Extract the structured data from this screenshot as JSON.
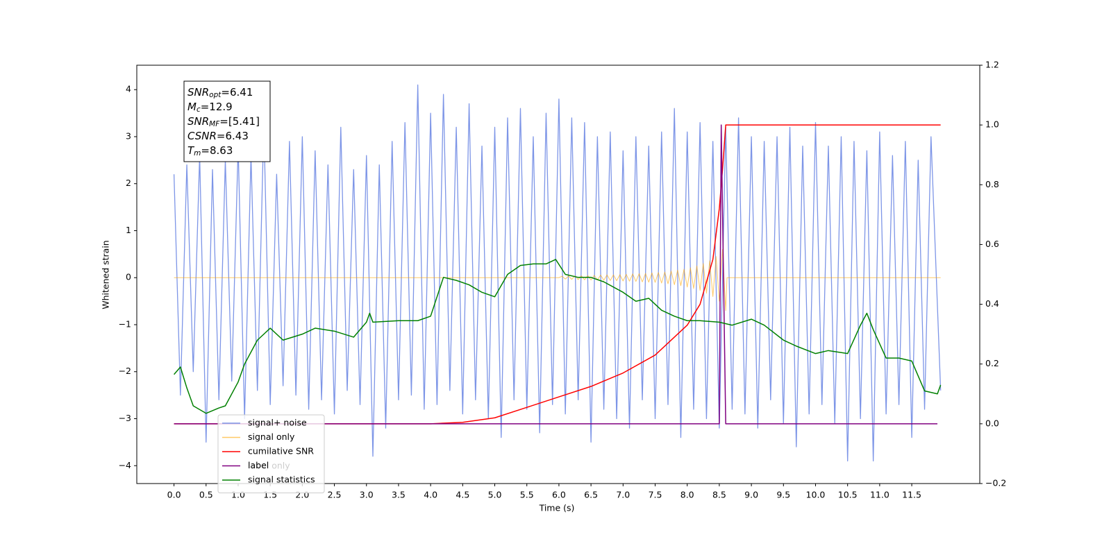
{
  "chart_data": {
    "type": "line",
    "xlabel": "Time (s)",
    "ylabel": "Whitened strain",
    "xlim": [
      -0.58,
      12.56
    ],
    "ylim": [
      -4.38,
      4.52
    ],
    "y2lim": [
      -0.2,
      1.2
    ],
    "xticks": [
      {
        "value": 0,
        "label": "0.0"
      },
      0.5,
      {
        "value": 1,
        "label": "1.0"
      },
      1.5,
      {
        "value": 2,
        "label": "2.0"
      },
      2.5,
      {
        "value": 3,
        "label": "3.0"
      },
      3.5,
      {
        "value": 4,
        "label": "4.0"
      },
      4.5,
      {
        "value": 5,
        "label": "5.0"
      },
      5.5,
      {
        "value": 6,
        "label": "6.0"
      },
      6.5,
      {
        "value": 7,
        "label": "7.0"
      },
      7.5,
      {
        "value": 8,
        "label": "8.0"
      },
      8.5,
      {
        "value": 9,
        "label": "9.0"
      },
      9.5,
      {
        "value": 10,
        "label": "10.0"
      },
      10.5,
      {
        "value": 11,
        "label": "11.0"
      },
      11.5
    ],
    "yticks": [
      {
        "value": -4,
        "label": "−4"
      },
      {
        "value": -3,
        "label": "−3"
      },
      {
        "value": -2,
        "label": "−2"
      },
      {
        "value": -1,
        "label": "−1"
      },
      0,
      1,
      2,
      3,
      4
    ],
    "y2ticks": [
      {
        "value": -0.2,
        "label": "−0.2"
      },
      {
        "value": 0,
        "label": "0.0"
      },
      0.2,
      0.4,
      0.6,
      0.8,
      {
        "value": 1,
        "label": "1.0"
      },
      1.2
    ],
    "grid": false,
    "legend": "lower left",
    "textbox": [
      {
        "main": "SNR",
        "sub": "opt",
        "rest": "=6.41"
      },
      {
        "main": "M",
        "sub": "c",
        "rest": "=12.9"
      },
      {
        "main": "SNR",
        "sub": "MF",
        "rest": "=[5.41]"
      },
      {
        "main": "CSNR",
        "sub": "",
        "rest": "=6.43"
      },
      {
        "main": "T",
        "sub": "m",
        "rest": "=8.63"
      }
    ],
    "hidden_legend_text": "label only",
    "series": [
      {
        "name": "signal+ noise",
        "color": "#6f8ae4",
        "axis": "y",
        "x": [
          0,
          0.1,
          0.2,
          0.3,
          0.4,
          0.5,
          0.6,
          0.7,
          0.8,
          0.9,
          1,
          1.1,
          1.2,
          1.3,
          1.4,
          1.5,
          1.6,
          1.7,
          1.8,
          1.9,
          2,
          2.1,
          2.2,
          2.3,
          2.4,
          2.5,
          2.6,
          2.7,
          2.8,
          2.9,
          3,
          3.1,
          3.2,
          3.3,
          3.4,
          3.5,
          3.6,
          3.7,
          3.8,
          3.9,
          4,
          4.1,
          4.2,
          4.3,
          4.4,
          4.5,
          4.6,
          4.7,
          4.8,
          4.9,
          5,
          5.1,
          5.2,
          5.3,
          5.4,
          5.5,
          5.6,
          5.7,
          5.8,
          5.9,
          6,
          6.1,
          6.2,
          6.3,
          6.4,
          6.5,
          6.6,
          6.7,
          6.8,
          6.9,
          7,
          7.1,
          7.2,
          7.3,
          7.4,
          7.5,
          7.6,
          7.7,
          7.8,
          7.9,
          8,
          8.1,
          8.2,
          8.3,
          8.4,
          8.5,
          8.6,
          8.7,
          8.8,
          8.9,
          9,
          9.1,
          9.2,
          9.3,
          9.4,
          9.5,
          9.6,
          9.7,
          9.8,
          9.9,
          10,
          10.1,
          10.2,
          10.3,
          10.4,
          10.5,
          10.6,
          10.7,
          10.8,
          10.9,
          11,
          11.1,
          11.2,
          11.3,
          11.4,
          11.5,
          11.6,
          11.7,
          11.8,
          11.95
        ],
        "values": [
          2.2,
          -2.5,
          2.4,
          -2.0,
          2.6,
          -3.5,
          2.3,
          -2.6,
          2.5,
          -2.2,
          2.8,
          -3.0,
          2.6,
          -2.4,
          3.3,
          -2.7,
          2.2,
          -2.3,
          2.9,
          -2.5,
          3.0,
          -2.8,
          2.7,
          -2.6,
          2.4,
          -2.9,
          3.2,
          -2.4,
          2.3,
          -2.7,
          2.6,
          -3.8,
          2.4,
          -3.2,
          2.9,
          -2.6,
          3.3,
          -2.5,
          4.1,
          -2.8,
          3.5,
          -2.7,
          3.9,
          -2.4,
          3.2,
          -2.9,
          3.7,
          -2.6,
          2.8,
          -3.0,
          3.2,
          -3.4,
          3.4,
          -2.6,
          3.6,
          -2.8,
          3.0,
          -3.3,
          3.5,
          -2.7,
          3.8,
          -2.9,
          3.4,
          -2.6,
          3.3,
          -3.5,
          3.0,
          -2.8,
          3.1,
          -3.0,
          2.7,
          -3.2,
          3.0,
          -2.6,
          2.8,
          -3.0,
          3.1,
          -2.7,
          3.6,
          -3.4,
          3.1,
          -2.8,
          3.3,
          -3.0,
          2.9,
          -3.2,
          3.2,
          -2.8,
          3.4,
          -2.9,
          3.0,
          -3.2,
          2.9,
          -2.6,
          3.0,
          -3.1,
          3.2,
          -3.6,
          2.8,
          -2.9,
          3.3,
          -2.7,
          2.8,
          -3.1,
          3.0,
          -3.9,
          2.9,
          -3.0,
          2.7,
          -3.9,
          3.1,
          -2.9,
          2.6,
          -2.7,
          2.9,
          -3.4,
          2.5,
          -2.8,
          3.0,
          -2.4
        ]
      },
      {
        "name": "signal only",
        "color": "#ffa500",
        "axis": "y",
        "x": [
          0,
          6,
          6.05,
          6.1,
          6.15,
          6.2,
          6.25,
          6.3,
          6.35,
          6.4,
          6.45,
          6.5,
          6.55,
          6.6,
          6.65,
          6.7,
          6.75,
          6.8,
          6.85,
          6.9,
          6.95,
          7,
          7.05,
          7.1,
          7.15,
          7.2,
          7.25,
          7.3,
          7.35,
          7.4,
          7.45,
          7.5,
          7.55,
          7.6,
          7.65,
          7.7,
          7.75,
          7.8,
          7.85,
          7.9,
          7.95,
          8,
          8.05,
          8.1,
          8.15,
          8.2,
          8.25,
          8.3,
          8.35,
          8.4,
          8.45,
          8.5,
          8.55,
          8.6,
          8.62,
          11.95
        ],
        "values": [
          0,
          0,
          0.03,
          -0.03,
          0.035,
          -0.035,
          0.04,
          -0.04,
          0.04,
          -0.045,
          0.045,
          -0.05,
          0.05,
          -0.05,
          0.055,
          -0.055,
          0.06,
          -0.06,
          0.06,
          -0.065,
          0.065,
          -0.07,
          0.07,
          -0.075,
          0.08,
          -0.08,
          0.085,
          -0.09,
          0.09,
          -0.095,
          0.1,
          -0.1,
          0.11,
          -0.115,
          0.12,
          -0.13,
          0.14,
          -0.15,
          0.16,
          -0.17,
          0.18,
          -0.2,
          0.21,
          -0.23,
          0.25,
          -0.27,
          0.3,
          -0.33,
          0.36,
          -0.4,
          0.45,
          -0.5,
          0.6,
          -0.7,
          0,
          0
        ]
      },
      {
        "name": "cumilative SNR",
        "color": "#ff0000",
        "axis": "y2",
        "x": [
          0,
          4,
          4.5,
          5,
          5.5,
          6,
          6.5,
          7,
          7.5,
          8,
          8.2,
          8.4,
          8.5,
          8.55,
          8.6,
          11.95
        ],
        "values": [
          0,
          0,
          0.005,
          0.02,
          0.055,
          0.09,
          0.125,
          0.17,
          0.23,
          0.33,
          0.4,
          0.55,
          0.72,
          0.85,
          1,
          1
        ]
      },
      {
        "name": "label",
        "color": "#800080",
        "axis": "y2",
        "x": [
          0,
          8.5,
          8.53,
          8.6,
          11.9
        ],
        "values": [
          0,
          0,
          1,
          0,
          0
        ]
      },
      {
        "name": "signal statistics",
        "color": "#008000",
        "axis": "y2",
        "x": [
          0,
          0.1,
          0.2,
          0.3,
          0.5,
          0.7,
          0.8,
          1,
          1.1,
          1.3,
          1.5,
          1.7,
          2,
          2.2,
          2.5,
          2.8,
          3,
          3.05,
          3.1,
          3.5,
          3.8,
          4,
          4.2,
          4.4,
          4.6,
          4.8,
          5,
          5.2,
          5.4,
          5.6,
          5.8,
          5.95,
          6.1,
          6.3,
          6.5,
          6.7,
          7,
          7.2,
          7.4,
          7.6,
          7.8,
          8,
          8.2,
          8.5,
          8.7,
          9,
          9.2,
          9.5,
          9.7,
          10,
          10.2,
          10.5,
          10.7,
          10.8,
          10.9,
          11.1,
          11.3,
          11.5,
          11.7,
          11.9,
          11.95
        ],
        "values": [
          0.165,
          0.19,
          0.12,
          0.06,
          0.035,
          0.053,
          0.06,
          0.14,
          0.2,
          0.28,
          0.32,
          0.28,
          0.3,
          0.32,
          0.31,
          0.29,
          0.34,
          0.37,
          0.34,
          0.345,
          0.345,
          0.36,
          0.49,
          0.48,
          0.465,
          0.44,
          0.425,
          0.5,
          0.53,
          0.535,
          0.535,
          0.55,
          0.5,
          0.49,
          0.49,
          0.475,
          0.44,
          0.41,
          0.42,
          0.38,
          0.36,
          0.345,
          0.345,
          0.34,
          0.33,
          0.35,
          0.33,
          0.28,
          0.26,
          0.235,
          0.245,
          0.235,
          0.33,
          0.37,
          0.315,
          0.22,
          0.22,
          0.21,
          0.11,
          0.1,
          0.13
        ]
      }
    ]
  }
}
